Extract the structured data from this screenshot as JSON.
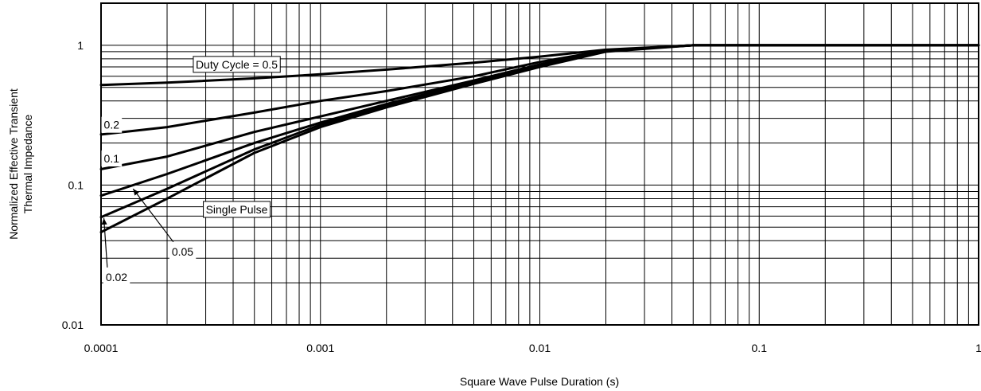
{
  "chart_data": {
    "type": "line",
    "xlabel": "Square Wave Pulse Duration (s)",
    "ylabel_lines": [
      "Normalized Effective Transient",
      "Thermal Impedance"
    ],
    "xscale": "log",
    "yscale": "log",
    "xlim": [
      0.0001,
      1
    ],
    "ylim": [
      0.01,
      2
    ],
    "grid": "on",
    "xticks": [
      {
        "value": 0.0001,
        "label": "0.0001"
      },
      {
        "value": 0.001,
        "label": "0.001"
      },
      {
        "value": 0.01,
        "label": "0.01"
      },
      {
        "value": 0.1,
        "label": "0.1"
      },
      {
        "value": 1,
        "label": "1"
      }
    ],
    "yticks": [
      {
        "value": 0.01,
        "label": "0.01"
      },
      {
        "value": 0.1,
        "label": "0.1"
      },
      {
        "value": 1,
        "label": "1"
      }
    ],
    "series": [
      {
        "name": "Duty Cycle = 0.5",
        "x": [
          0.0001,
          0.0002,
          0.0005,
          0.001,
          0.002,
          0.005,
          0.01,
          0.02,
          0.05,
          1
        ],
        "y": [
          0.52,
          0.54,
          0.58,
          0.62,
          0.67,
          0.75,
          0.83,
          0.93,
          1.0,
          1.0
        ]
      },
      {
        "name": "0.2",
        "x": [
          0.0001,
          0.0002,
          0.0005,
          0.001,
          0.002,
          0.005,
          0.01,
          0.02,
          0.05,
          1
        ],
        "y": [
          0.23,
          0.26,
          0.33,
          0.4,
          0.47,
          0.6,
          0.76,
          0.92,
          1.0,
          1.0
        ]
      },
      {
        "name": "0.1",
        "x": [
          0.0001,
          0.0002,
          0.0005,
          0.001,
          0.002,
          0.005,
          0.01,
          0.02,
          0.05,
          1
        ],
        "y": [
          0.13,
          0.16,
          0.24,
          0.31,
          0.4,
          0.56,
          0.73,
          0.92,
          1.0,
          1.0
        ]
      },
      {
        "name": "0.05",
        "x": [
          0.0001,
          0.0002,
          0.0005,
          0.001,
          0.002,
          0.005,
          0.01,
          0.02,
          0.05,
          1
        ],
        "y": [
          0.084,
          0.12,
          0.2,
          0.28,
          0.38,
          0.55,
          0.72,
          0.92,
          1.0,
          1.0
        ]
      },
      {
        "name": "0.02",
        "x": [
          0.0001,
          0.0002,
          0.0005,
          0.001,
          0.002,
          0.005,
          0.01,
          0.02,
          0.05,
          1
        ],
        "y": [
          0.059,
          0.094,
          0.18,
          0.27,
          0.37,
          0.54,
          0.71,
          0.91,
          1.0,
          1.0
        ]
      },
      {
        "name": "Single Pulse",
        "x": [
          0.0001,
          0.0002,
          0.0005,
          0.001,
          0.002,
          0.005,
          0.01,
          0.02,
          0.05,
          1
        ],
        "y": [
          0.046,
          0.08,
          0.17,
          0.26,
          0.36,
          0.53,
          0.7,
          0.9,
          1.0,
          1.0
        ]
      }
    ],
    "annotations": [
      {
        "text": "Duty Cycle = 0.5",
        "x": 0.00027,
        "y": 0.73,
        "anchor": "start",
        "box": true
      },
      {
        "text": "0.2",
        "x": 0.000103,
        "y": 0.27,
        "anchor": "start",
        "box": false
      },
      {
        "text": "0.1",
        "x": 0.000103,
        "y": 0.155,
        "anchor": "start",
        "box": false
      },
      {
        "text": "Single Pulse",
        "x": 0.0003,
        "y": 0.067,
        "anchor": "start",
        "box": true
      },
      {
        "text": "0.05",
        "x": 0.00021,
        "y": 0.0335,
        "anchor": "start",
        "box": false,
        "arrow_to": {
          "x": 0.00014,
          "y": 0.094
        }
      },
      {
        "text": "0.02",
        "x": 0.000105,
        "y": 0.022,
        "anchor": "start",
        "box": false,
        "arrow_to": {
          "x": 0.000103,
          "y": 0.058
        }
      }
    ]
  }
}
